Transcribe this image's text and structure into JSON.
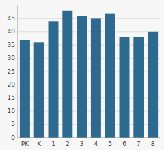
{
  "chart_data": {
    "type": "bar",
    "categories": [
      "PK",
      "K",
      "1",
      "2",
      "3",
      "4",
      "5",
      "6",
      "7",
      "8"
    ],
    "values": [
      37,
      36,
      44,
      48,
      46,
      45,
      47,
      38,
      38,
      40
    ],
    "color": "#2e6a8e",
    "ylim": [
      0,
      50
    ],
    "yticks": [
      0,
      5,
      10,
      15,
      20,
      25,
      30,
      35,
      40,
      45
    ],
    "grid": true
  }
}
